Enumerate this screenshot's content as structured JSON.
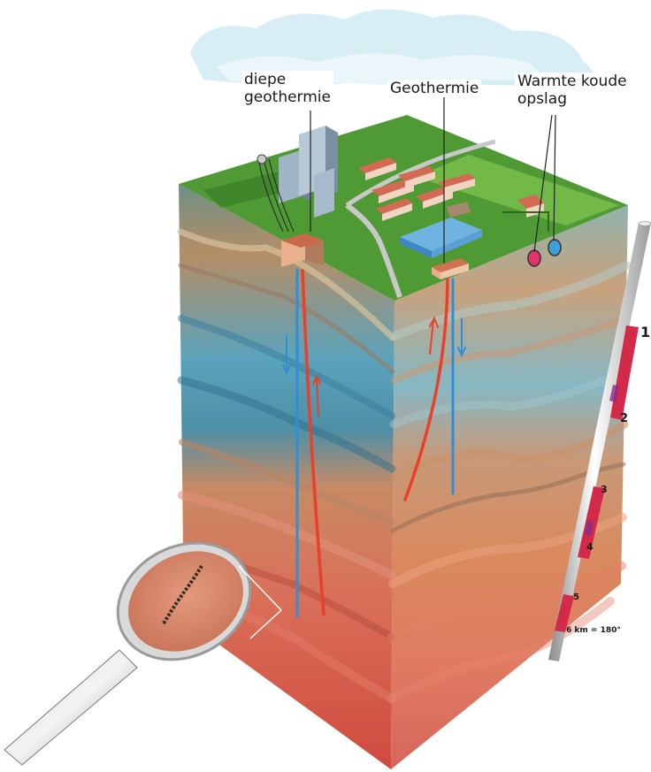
{
  "labels": {
    "deep": [
      "diepe",
      "geothermie"
    ],
    "geo": "Geothermie",
    "storage": [
      "Warmte koude",
      "opslag"
    ]
  },
  "depth_scale": {
    "ticks": [
      "1",
      "2",
      "3",
      "4",
      "5"
    ],
    "note": "6 km = 180°"
  },
  "colors": {
    "grass": "#4f9a34",
    "hot_pipe": "#e8402a",
    "cold_pipe": "#2f8fd6",
    "scale_red": "#d42a4a",
    "sky": "#d8eef5"
  }
}
